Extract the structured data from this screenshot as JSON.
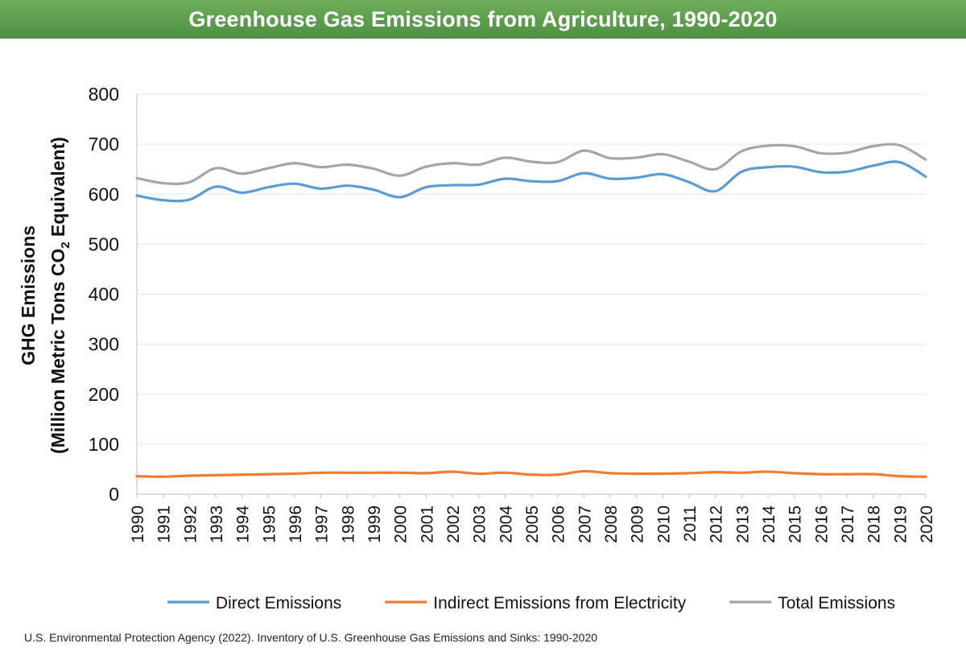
{
  "title": "Greenhouse Gas Emissions from Agriculture, 1990-2020",
  "citation": "U.S. Environmental Protection Agency (2022). Inventory of U.S. Greenhouse Gas Emissions and Sinks: 1990-2020",
  "chart_data": {
    "type": "line",
    "title": "Greenhouse Gas Emissions from Agriculture, 1990-2020",
    "ylabel_line1": "GHG Emissions",
    "ylabel_line2": "(Million Metric Tons CO",
    "ylabel_sub": "2",
    "ylabel_tail": " Equivalent)",
    "xlabel": "",
    "ylim": [
      0,
      800
    ],
    "yticks": [
      0,
      100,
      200,
      300,
      400,
      500,
      600,
      700,
      800
    ],
    "grid": true,
    "legend_position": "bottom",
    "smooth": true,
    "categories": [
      "1990",
      "1991",
      "1992",
      "1993",
      "1994",
      "1995",
      "1996",
      "1997",
      "1998",
      "1999",
      "2000",
      "2001",
      "2002",
      "2003",
      "2004",
      "2005",
      "2006",
      "2007",
      "2008",
      "2009",
      "2010",
      "2011",
      "2012",
      "2013",
      "2014",
      "2015",
      "2016",
      "2017",
      "2018",
      "2019",
      "2020"
    ],
    "series": [
      {
        "name": "Direct Emissions",
        "color": "#5b9bd5",
        "values": [
          597,
          588,
          589,
          615,
          603,
          614,
          621,
          611,
          617,
          609,
          594,
          614,
          618,
          619,
          631,
          626,
          626,
          642,
          631,
          633,
          640,
          624,
          606,
          645,
          654,
          655,
          644,
          645,
          657,
          664,
          635
        ]
      },
      {
        "name": "Indirect Emissions from Electricity",
        "color": "#ed7d31",
        "values": [
          36,
          35,
          37,
          38,
          39,
          40,
          41,
          43,
          43,
          43,
          43,
          42,
          45,
          41,
          43,
          39,
          39,
          46,
          42,
          41,
          41,
          42,
          44,
          43,
          45,
          42,
          40,
          40,
          40,
          36,
          35
        ]
      },
      {
        "name": "Total Emissions",
        "color": "#a5a5a5",
        "values": [
          632,
          622,
          624,
          652,
          641,
          652,
          662,
          654,
          659,
          651,
          637,
          655,
          662,
          659,
          673,
          665,
          664,
          687,
          672,
          673,
          680,
          665,
          650,
          686,
          697,
          696,
          682,
          683,
          696,
          698,
          669
        ]
      }
    ]
  }
}
